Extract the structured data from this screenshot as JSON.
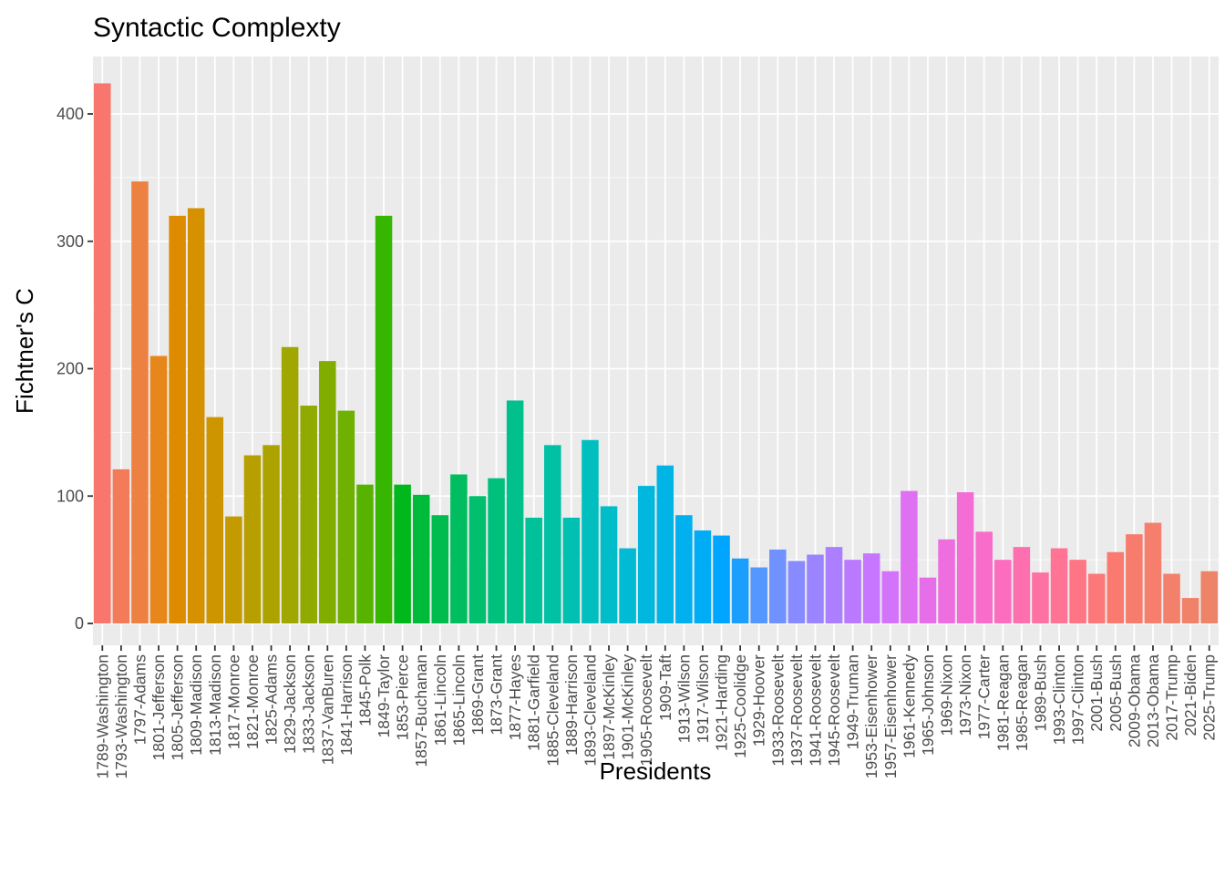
{
  "chart_data": {
    "type": "bar",
    "title": "Syntactic Complexty",
    "xlabel": "Presidents",
    "ylabel": "Fichtner's C",
    "ylim": [
      0,
      440
    ],
    "yticks": [
      0,
      100,
      200,
      300,
      400
    ],
    "grid": true,
    "legend": "none",
    "categories": [
      "1789-Washington",
      "1793-Washington",
      "1797-Adams",
      "1801-Jefferson",
      "1805-Jefferson",
      "1809-Madison",
      "1813-Madison",
      "1817-Monroe",
      "1821-Monroe",
      "1825-Adams",
      "1829-Jackson",
      "1833-Jackson",
      "1837-VanBuren",
      "1841-Harrison",
      "1845-Polk",
      "1849-Taylor",
      "1853-Pierce",
      "1857-Buchanan",
      "1861-Lincoln",
      "1865-Lincoln",
      "1869-Grant",
      "1873-Grant",
      "1877-Hayes",
      "1881-Garfield",
      "1885-Cleveland",
      "1889-Harrison",
      "1893-Cleveland",
      "1897-McKinley",
      "1901-McKinley",
      "1905-Roosevelt",
      "1909-Taft",
      "1913-Wilson",
      "1917-Wilson",
      "1921-Harding",
      "1925-Coolidge",
      "1929-Hoover",
      "1933-Roosevelt",
      "1937-Roosevelt",
      "1941-Roosevelt",
      "1945-Roosevelt",
      "1949-Truman",
      "1953-Eisenhower",
      "1957-Eisenhower",
      "1961-Kennedy",
      "1965-Johnson",
      "1969-Nixon",
      "1973-Nixon",
      "1977-Carter",
      "1981-Reagan",
      "1985-Reagan",
      "1989-Bush",
      "1993-Clinton",
      "1997-Clinton",
      "2001-Bush",
      "2005-Bush",
      "2009-Obama",
      "2013-Obama",
      "2017-Trump",
      "2021-Biden",
      "2025-Trump"
    ],
    "values": [
      424,
      121,
      347,
      210,
      320,
      326,
      162,
      84,
      132,
      140,
      217,
      171,
      206,
      167,
      109,
      320,
      109,
      101,
      85,
      117,
      100,
      114,
      175,
      83,
      140,
      83,
      144,
      92,
      59,
      108,
      124,
      85,
      73,
      69,
      51,
      44,
      58,
      49,
      54,
      60,
      50,
      55,
      41,
      104,
      36,
      66,
      103,
      72,
      50,
      60,
      40,
      59,
      50,
      39,
      56,
      70,
      79,
      39,
      20,
      41
    ],
    "colors": [
      "#F8766D",
      "#F37B59",
      "#ED8141",
      "#E7861B",
      "#DF8B00",
      "#D69100",
      "#CD9600",
      "#C39B00",
      "#B89F00",
      "#ACA300",
      "#9FA700",
      "#91AA00",
      "#81AD00",
      "#6EB100",
      "#57B300",
      "#36B600",
      "#00B81B",
      "#00BA39",
      "#00BC4E",
      "#00BD5F",
      "#00BF6F",
      "#00C07E",
      "#00C08C",
      "#00C199",
      "#00C0A6",
      "#00C0B2",
      "#00BFBE",
      "#00BDC9",
      "#00BBD3",
      "#00B8DD",
      "#00B4E6",
      "#00B0EF",
      "#00ACF6",
      "#00A6FD",
      "#1A9FFF",
      "#5498FF",
      "#7092FF",
      "#878BFF",
      "#9A84FF",
      "#AB7FFF",
      "#BA7AFF",
      "#C776FF",
      "#D373FA",
      "#DD71F2",
      "#E66FE9",
      "#EE6EE0",
      "#F46DD5",
      "#F96DCA",
      "#FC6EBD",
      "#FE6FB0",
      "#FF71A2",
      "#FF7394",
      "#FE7586",
      "#FD7878",
      "#FB7A6F",
      "#F87C6D",
      "#F57E6C",
      "#F2806B",
      "#F0826A",
      "#ED8469"
    ]
  }
}
